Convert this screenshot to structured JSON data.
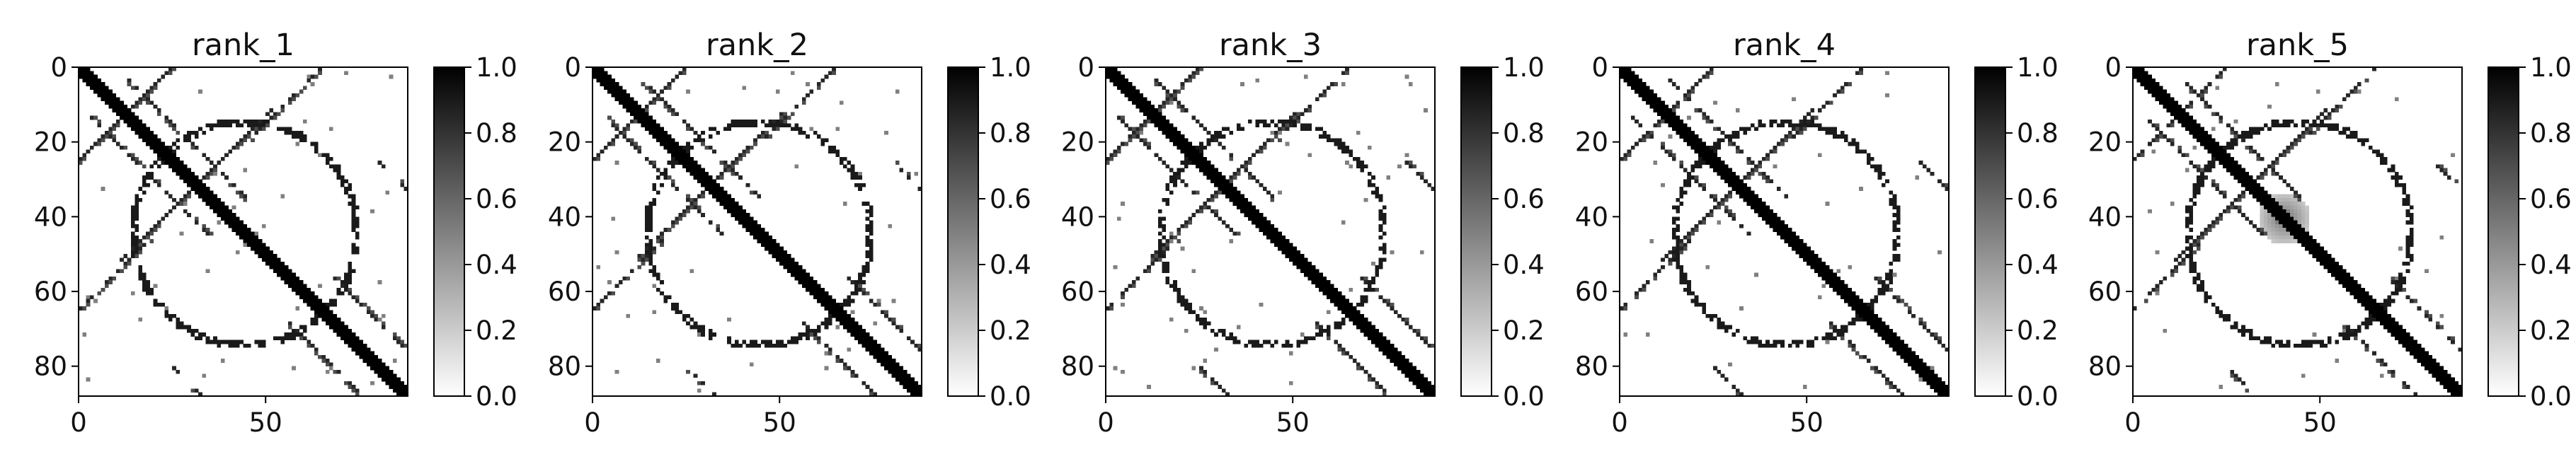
{
  "chart_data": [
    {
      "type": "heatmap",
      "title": "rank_1",
      "n": 88,
      "xlim": [
        0,
        88
      ],
      "ylim": [
        88,
        0
      ],
      "xticks": [
        0,
        50
      ],
      "yticks": [
        0,
        20,
        40,
        60,
        80
      ],
      "colorbar": {
        "range": [
          0.0,
          1.0
        ],
        "ticks": [
          "0.0",
          "0.2",
          "0.4",
          "0.6",
          "0.8",
          "1.0"
        ],
        "colormap": "gray_r"
      },
      "pattern": {
        "diagonal_width": 2,
        "secondary_diagonals": [
          [
            0,
            24
          ],
          [
            13,
            3
          ],
          [
            14,
            48
          ],
          [
            25,
            80
          ],
          [
            46,
            18
          ],
          [
            56,
            68
          ]
        ],
        "soft_blob_at": null
      }
    },
    {
      "type": "heatmap",
      "title": "rank_2",
      "n": 88,
      "xlim": [
        0,
        88
      ],
      "ylim": [
        88,
        0
      ],
      "xticks": [
        0,
        50
      ],
      "yticks": [
        0,
        20,
        40,
        60,
        80
      ],
      "colorbar": {
        "range": [
          0.0,
          1.0
        ],
        "ticks": [
          "0.0",
          "0.2",
          "0.4",
          "0.6",
          "0.8",
          "1.0"
        ],
        "colormap": "gray_r"
      },
      "pattern": {
        "diagonal_width": 2,
        "secondary_diagonals": [
          [
            0,
            24
          ],
          [
            13,
            3
          ],
          [
            14,
            48
          ],
          [
            25,
            80
          ],
          [
            46,
            18
          ],
          [
            56,
            68
          ]
        ],
        "soft_blob_at": null
      }
    },
    {
      "type": "heatmap",
      "title": "rank_3",
      "n": 88,
      "xlim": [
        0,
        88
      ],
      "ylim": [
        88,
        0
      ],
      "xticks": [
        0,
        50
      ],
      "yticks": [
        0,
        20,
        40,
        60,
        80
      ],
      "colorbar": {
        "range": [
          0.0,
          1.0
        ],
        "ticks": [
          "0.0",
          "0.2",
          "0.4",
          "0.6",
          "0.8",
          "1.0"
        ],
        "colormap": "gray_r"
      },
      "pattern": {
        "diagonal_width": 2,
        "secondary_diagonals": [
          [
            0,
            24
          ],
          [
            13,
            3
          ],
          [
            14,
            48
          ],
          [
            25,
            80
          ],
          [
            46,
            18
          ],
          [
            56,
            68
          ]
        ],
        "soft_blob_at": null
      }
    },
    {
      "type": "heatmap",
      "title": "rank_4",
      "n": 88,
      "xlim": [
        0,
        88
      ],
      "ylim": [
        88,
        0
      ],
      "xticks": [
        0,
        50
      ],
      "yticks": [
        0,
        20,
        40,
        60,
        80
      ],
      "colorbar": {
        "range": [
          0.0,
          1.0
        ],
        "ticks": [
          "0.0",
          "0.2",
          "0.4",
          "0.6",
          "0.8",
          "1.0"
        ],
        "colormap": "gray_r"
      },
      "pattern": {
        "diagonal_width": 2,
        "secondary_diagonals": [
          [
            0,
            24
          ],
          [
            13,
            3
          ],
          [
            14,
            48
          ],
          [
            25,
            80
          ],
          [
            46,
            18
          ],
          [
            56,
            68
          ]
        ],
        "soft_blob_at": null
      }
    },
    {
      "type": "heatmap",
      "title": "rank_5",
      "n": 88,
      "xlim": [
        0,
        88
      ],
      "ylim": [
        88,
        0
      ],
      "xticks": [
        0,
        50
      ],
      "yticks": [
        0,
        20,
        40,
        60,
        80
      ],
      "colorbar": {
        "range": [
          0.0,
          1.0
        ],
        "ticks": [
          "0.0",
          "0.2",
          "0.4",
          "0.6",
          "0.8",
          "1.0"
        ],
        "colormap": "gray_r"
      },
      "pattern": {
        "diagonal_width": 2,
        "secondary_diagonals": [
          [
            0,
            24
          ],
          [
            13,
            3
          ],
          [
            14,
            48
          ],
          [
            25,
            80
          ],
          [
            46,
            18
          ],
          [
            56,
            68
          ]
        ],
        "soft_blob_at": [
          40,
          40
        ]
      }
    }
  ]
}
